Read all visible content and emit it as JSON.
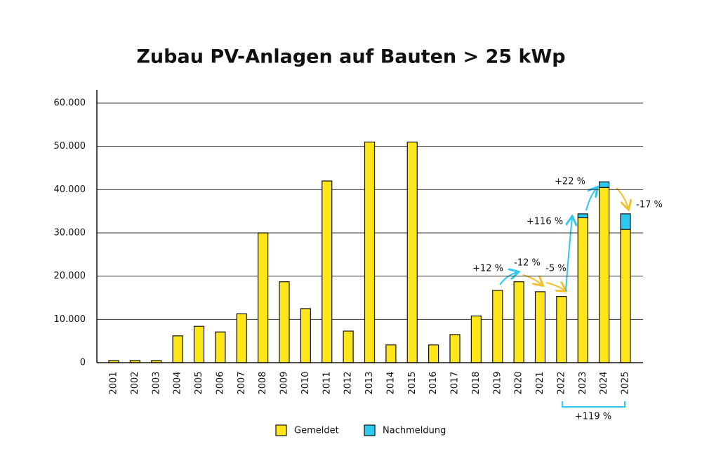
{
  "chart_data": {
    "type": "bar",
    "title": "Zubau PV-Anlagen auf Bauten > 25 kWp",
    "categories": [
      "2001",
      "2002",
      "2003",
      "2004",
      "2005",
      "2006",
      "2007",
      "2008",
      "2009",
      "2010",
      "2011",
      "2012",
      "2013",
      "2014",
      "2015",
      "2016",
      "2017",
      "2018",
      "2019",
      "2020",
      "2021",
      "2022",
      "2023",
      "2024",
      "2025"
    ],
    "series": [
      {
        "name": "Gemeldet",
        "color": "#ffe61a",
        "values": [
          500,
          500,
          500,
          6200,
          8400,
          7100,
          11300,
          30000,
          18700,
          12500,
          42000,
          7300,
          51000,
          4100,
          51000,
          4100,
          6500,
          10800,
          16700,
          18700,
          16400,
          15300,
          33500,
          40500,
          30800
        ]
      },
      {
        "name": "Nachmeldung",
        "color": "#2ec8ee",
        "values": [
          0,
          0,
          0,
          0,
          0,
          0,
          0,
          0,
          0,
          0,
          0,
          0,
          0,
          0,
          0,
          0,
          0,
          0,
          0,
          0,
          0,
          0,
          900,
          1300,
          3600
        ]
      }
    ],
    "stacked": true,
    "ylim": [
      0,
      60000
    ],
    "yticks": [
      0,
      {
        "value": 10000,
        "label": "10.000"
      },
      {
        "value": 20000,
        "label": "20.000"
      },
      {
        "value": 30000,
        "label": "30.000"
      },
      {
        "value": 40000,
        "label": "40.000"
      },
      {
        "value": 50000,
        "label": "50.000"
      },
      {
        "value": 60000,
        "label": "60.000"
      }
    ],
    "grid": true,
    "legend": "bottom",
    "annotations": [
      "+12 %",
      "-12 %",
      "-5 %",
      "+116 %",
      "+22 %",
      "-17 %",
      "+119 %"
    ]
  }
}
